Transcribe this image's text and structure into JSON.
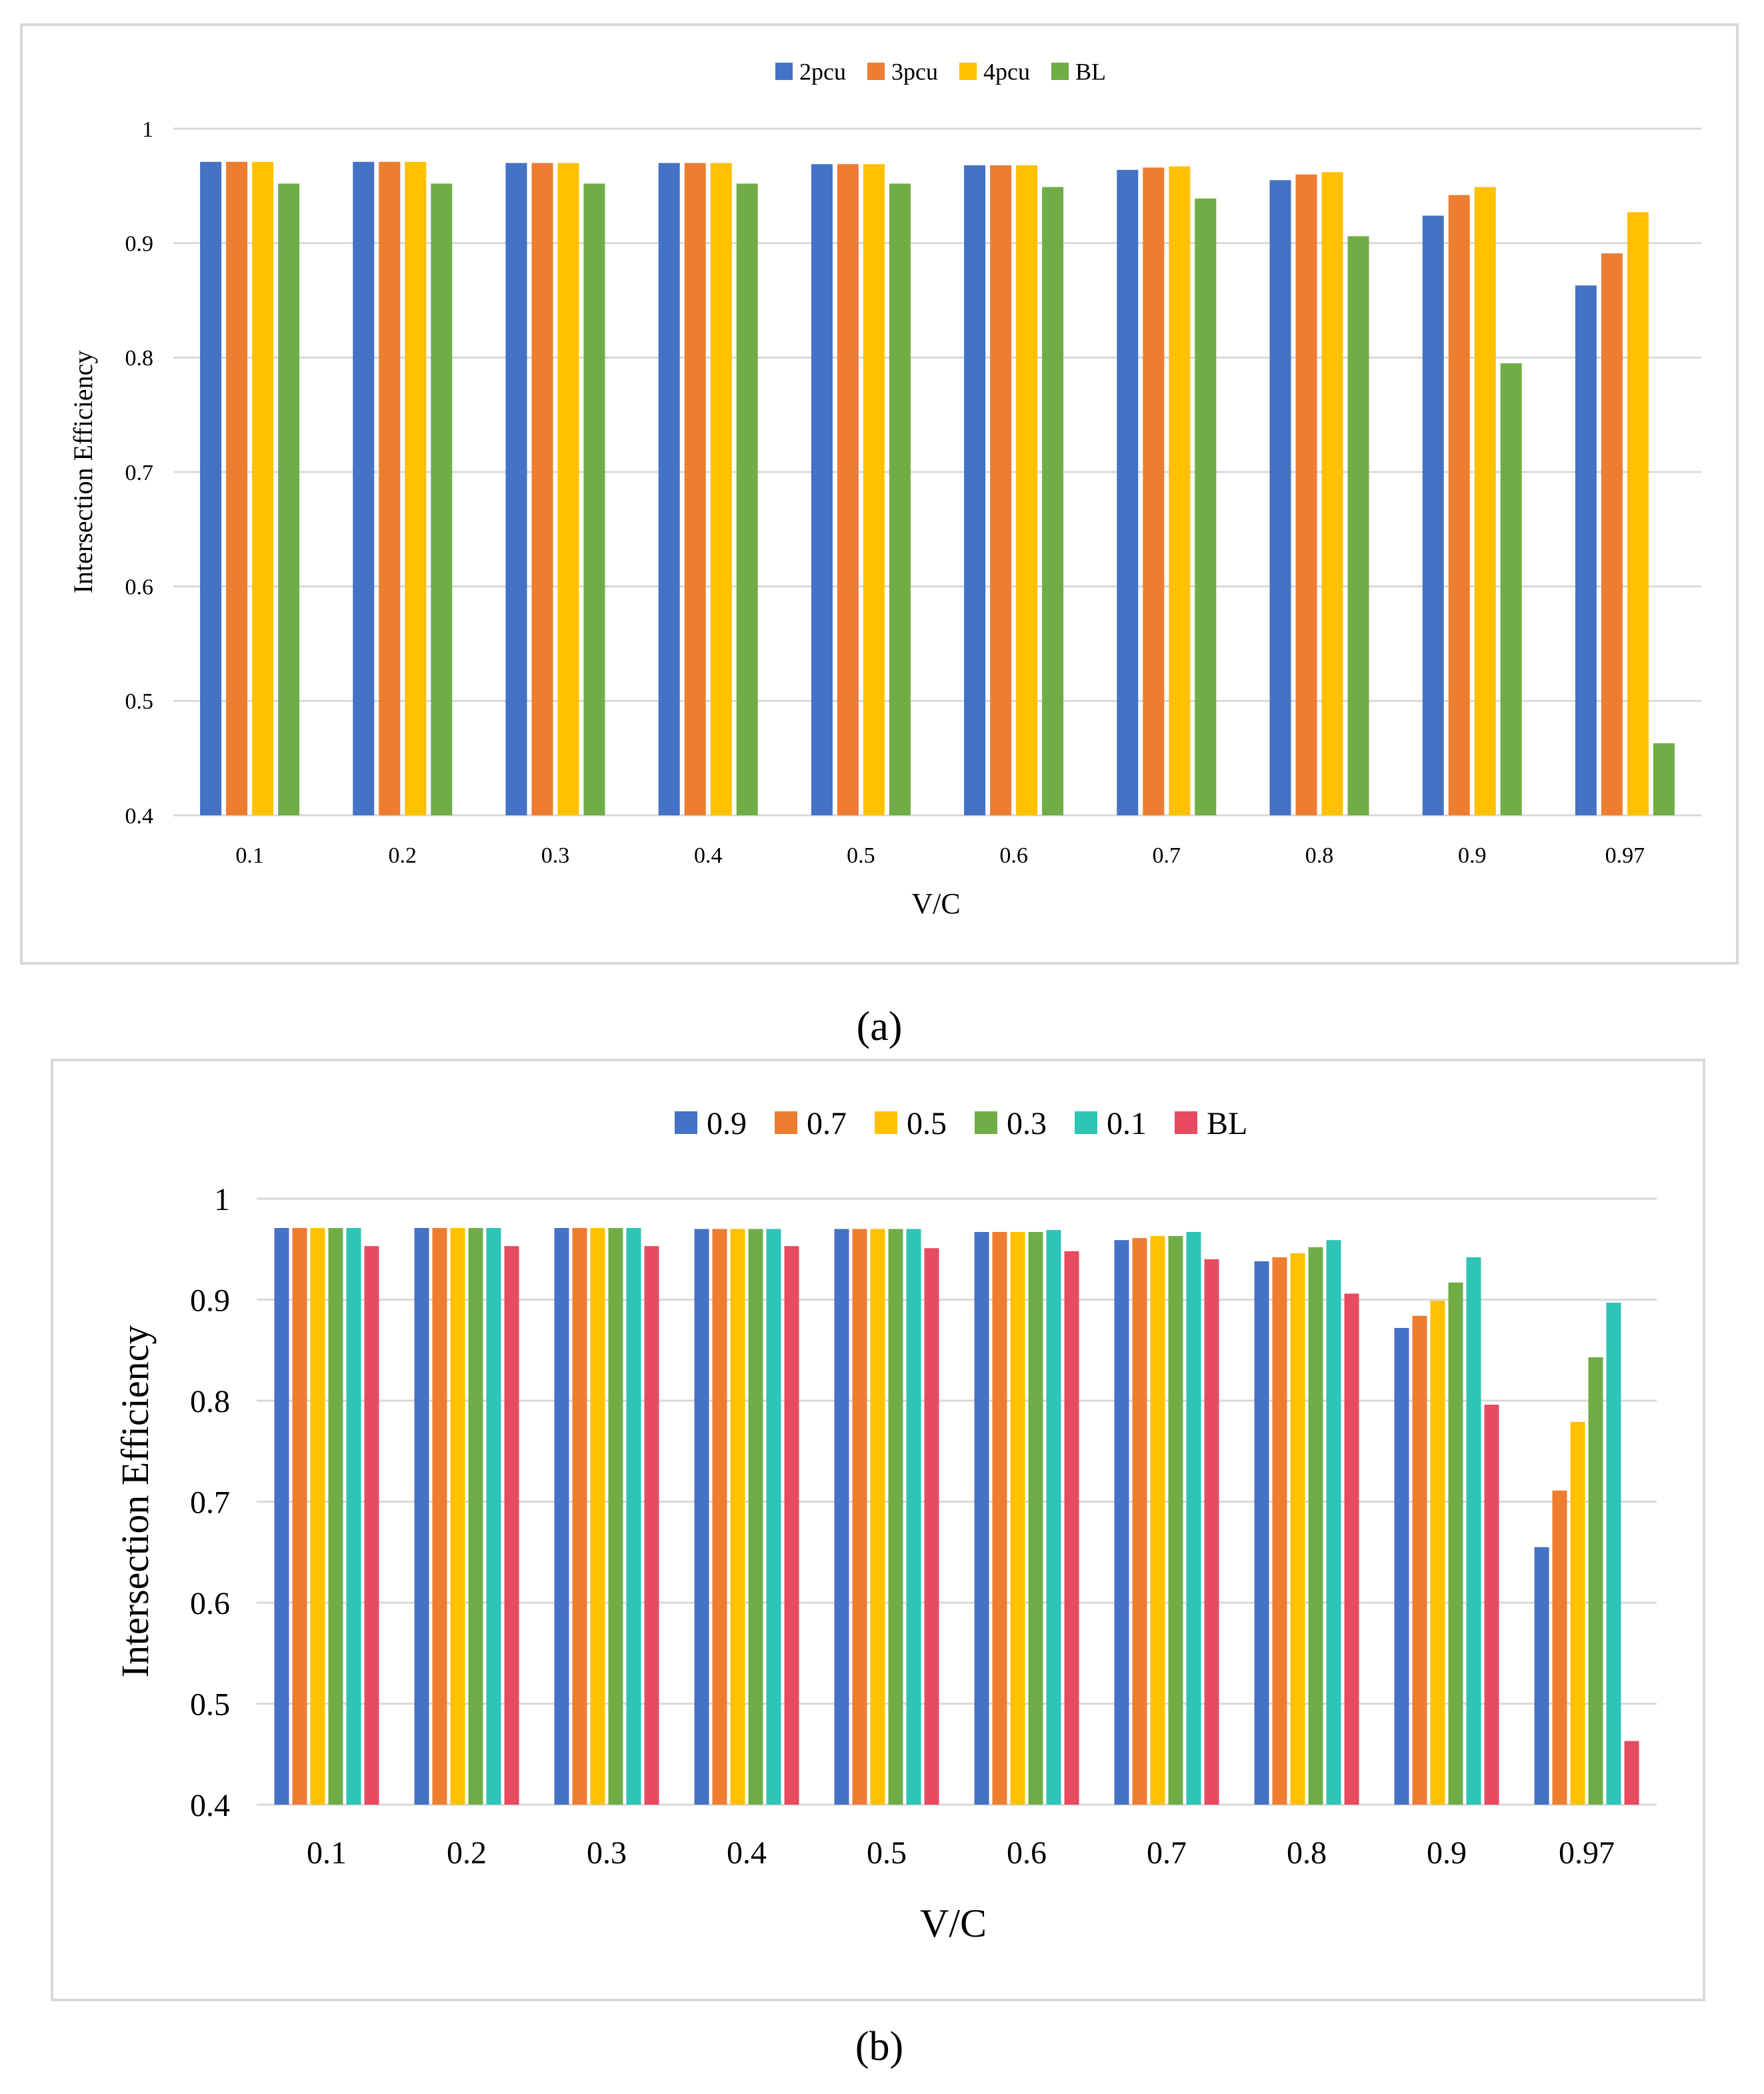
{
  "colors": {
    "blue": "#4472C4",
    "orange": "#ED7D31",
    "yellow": "#FFC000",
    "green": "#70AD47",
    "teal": "#2EC4B6",
    "red": "#E84A5F"
  },
  "chart_data": [
    {
      "type": "bar",
      "panel_label": "(a)",
      "title": "",
      "xlabel": "V/C",
      "ylabel": "Intersection Efficiency",
      "ylim": [
        0.4,
        1
      ],
      "yticks": [
        "0.4",
        "0.5",
        "0.6",
        "0.7",
        "0.8",
        "0.9",
        "1"
      ],
      "grid": true,
      "legend_position": "top-center",
      "categories": [
        "0.1",
        "0.2",
        "0.3",
        "0.4",
        "0.5",
        "0.6",
        "0.7",
        "0.8",
        "0.9",
        "0.97"
      ],
      "series": [
        {
          "name": "2pcu",
          "color": "#4472C4",
          "values": [
            0.971,
            0.971,
            0.97,
            0.97,
            0.969,
            0.968,
            0.964,
            0.955,
            0.924,
            0.863
          ]
        },
        {
          "name": "3pcu",
          "color": "#ED7D31",
          "values": [
            0.971,
            0.971,
            0.97,
            0.97,
            0.969,
            0.968,
            0.966,
            0.96,
            0.942,
            0.891
          ]
        },
        {
          "name": "4pcu",
          "color": "#FFC000",
          "values": [
            0.971,
            0.971,
            0.97,
            0.97,
            0.969,
            0.968,
            0.967,
            0.962,
            0.949,
            0.927
          ]
        },
        {
          "name": "BL",
          "color": "#70AD47",
          "values": [
            0.952,
            0.952,
            0.952,
            0.952,
            0.952,
            0.949,
            0.939,
            0.906,
            0.795,
            0.463
          ]
        }
      ]
    },
    {
      "type": "bar",
      "panel_label": "(b)",
      "title": "",
      "xlabel": "V/C",
      "ylabel": "Intersection Efficiency",
      "ylim": [
        0.4,
        1
      ],
      "yticks": [
        "0.4",
        "0.5",
        "0.6",
        "0.7",
        "0.8",
        "0.9",
        "1"
      ],
      "grid": true,
      "legend_position": "top-center",
      "categories": [
        "0.1",
        "0.2",
        "0.3",
        "0.4",
        "0.5",
        "0.6",
        "0.7",
        "0.8",
        "0.9",
        "0.97"
      ],
      "series": [
        {
          "name": "0.9",
          "color": "#4472C4",
          "values": [
            0.971,
            0.971,
            0.971,
            0.97,
            0.97,
            0.967,
            0.959,
            0.938,
            0.872,
            0.655
          ]
        },
        {
          "name": "0.7",
          "color": "#ED7D31",
          "values": [
            0.971,
            0.971,
            0.971,
            0.97,
            0.97,
            0.967,
            0.961,
            0.942,
            0.884,
            0.711
          ]
        },
        {
          "name": "0.5",
          "color": "#FFC000",
          "values": [
            0.971,
            0.971,
            0.971,
            0.97,
            0.97,
            0.967,
            0.963,
            0.946,
            0.899,
            0.779
          ]
        },
        {
          "name": "0.3",
          "color": "#70AD47",
          "values": [
            0.971,
            0.971,
            0.971,
            0.97,
            0.97,
            0.967,
            0.963,
            0.952,
            0.917,
            0.843
          ]
        },
        {
          "name": "0.1",
          "color": "#2EC4B6",
          "values": [
            0.971,
            0.971,
            0.971,
            0.97,
            0.97,
            0.969,
            0.967,
            0.959,
            0.942,
            0.897
          ]
        },
        {
          "name": "BL",
          "color": "#E84A5F",
          "values": [
            0.953,
            0.953,
            0.953,
            0.953,
            0.951,
            0.948,
            0.94,
            0.906,
            0.796,
            0.463
          ]
        }
      ]
    }
  ]
}
